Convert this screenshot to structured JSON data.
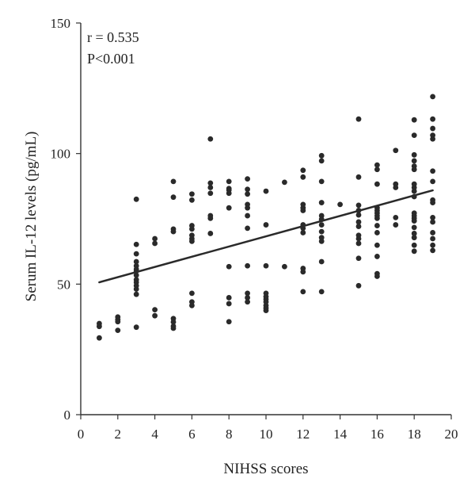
{
  "chart_data": {
    "type": "scatter",
    "title": "",
    "xlabel": "NIHSS scores",
    "ylabel": "Serum IL-12 levels (pg/mL)",
    "xlim": [
      0,
      20
    ],
    "ylim": [
      0,
      150
    ],
    "x_ticks": [
      0,
      2,
      4,
      6,
      8,
      10,
      12,
      14,
      16,
      18,
      20
    ],
    "y_ticks": [
      0,
      50,
      100,
      150
    ],
    "grid": false,
    "legend": "none",
    "annotations": [
      "r = 0.535",
      "P<0.001"
    ],
    "regression_line": {
      "x": [
        1,
        19
      ],
      "y": [
        50.7,
        85.9
      ]
    },
    "colors": {
      "points": "#2a2a2a",
      "line": "#2a2a2a",
      "axes": "#333333"
    },
    "points": [
      [
        1,
        33.8
      ],
      [
        1,
        34.9
      ],
      [
        1,
        29.4
      ],
      [
        2,
        32.3
      ],
      [
        2,
        35.6
      ],
      [
        2,
        36.4
      ],
      [
        2,
        37.4
      ],
      [
        3,
        82.5
      ],
      [
        3,
        65.2
      ],
      [
        3,
        61.6
      ],
      [
        3,
        58.6
      ],
      [
        3,
        57.0
      ],
      [
        3,
        55.7
      ],
      [
        3,
        55.0
      ],
      [
        3,
        53.4
      ],
      [
        3,
        51.7
      ],
      [
        3,
        50.7
      ],
      [
        3,
        49.4
      ],
      [
        3,
        48.1
      ],
      [
        3,
        46.1
      ],
      [
        3,
        33.5
      ],
      [
        4,
        67.4
      ],
      [
        4,
        65.6
      ],
      [
        4,
        40.2
      ],
      [
        4,
        37.9
      ],
      [
        5,
        89.3
      ],
      [
        5,
        83.3
      ],
      [
        5,
        71.1
      ],
      [
        5,
        70.1
      ],
      [
        5,
        36.8
      ],
      [
        5,
        35.5
      ],
      [
        5,
        33.9
      ],
      [
        5,
        33.1
      ],
      [
        6,
        84.5
      ],
      [
        6,
        82.2
      ],
      [
        6,
        72.4
      ],
      [
        6,
        71.1
      ],
      [
        6,
        68.7
      ],
      [
        6,
        67.4
      ],
      [
        6,
        66.4
      ],
      [
        6,
        46.5
      ],
      [
        6,
        43.2
      ],
      [
        6,
        41.8
      ],
      [
        7,
        105.6
      ],
      [
        7,
        88.7
      ],
      [
        7,
        87.0
      ],
      [
        7,
        84.8
      ],
      [
        7,
        76.2
      ],
      [
        7,
        75.2
      ],
      [
        7,
        69.4
      ],
      [
        8,
        89.3
      ],
      [
        8,
        86.6
      ],
      [
        8,
        86.0
      ],
      [
        8,
        84.8
      ],
      [
        8,
        79.2
      ],
      [
        8,
        56.7
      ],
      [
        8,
        44.8
      ],
      [
        8,
        42.5
      ],
      [
        8,
        35.6
      ],
      [
        9,
        90.3
      ],
      [
        9,
        86.3
      ],
      [
        9,
        84.5
      ],
      [
        9,
        80.5
      ],
      [
        9,
        79.2
      ],
      [
        9,
        76.2
      ],
      [
        9,
        71.4
      ],
      [
        9,
        57.0
      ],
      [
        9,
        46.5
      ],
      [
        9,
        44.8
      ],
      [
        9,
        43.2
      ],
      [
        10,
        85.6
      ],
      [
        10,
        72.7
      ],
      [
        10,
        57.0
      ],
      [
        10,
        46.5
      ],
      [
        10,
        45.2
      ],
      [
        10,
        44.2
      ],
      [
        10,
        43.2
      ],
      [
        10,
        41.8
      ],
      [
        10,
        40.8
      ],
      [
        10,
        39.9
      ],
      [
        11,
        89.0
      ],
      [
        11,
        56.7
      ],
      [
        12,
        93.6
      ],
      [
        12,
        91.0
      ],
      [
        12,
        80.5
      ],
      [
        12,
        79.2
      ],
      [
        12,
        78.2
      ],
      [
        12,
        72.7
      ],
      [
        12,
        71.4
      ],
      [
        12,
        69.7
      ],
      [
        12,
        56.0
      ],
      [
        12,
        54.7
      ],
      [
        12,
        47.1
      ],
      [
        13,
        99.2
      ],
      [
        13,
        97.2
      ],
      [
        13,
        89.3
      ],
      [
        13,
        81.2
      ],
      [
        13,
        76.2
      ],
      [
        13,
        74.8
      ],
      [
        13,
        72.7
      ],
      [
        13,
        70.1
      ],
      [
        13,
        67.8
      ],
      [
        13,
        66.4
      ],
      [
        13,
        58.6
      ],
      [
        13,
        47.1
      ],
      [
        14,
        80.5
      ],
      [
        15,
        113.2
      ],
      [
        15,
        91.0
      ],
      [
        15,
        80.2
      ],
      [
        15,
        78.2
      ],
      [
        15,
        76.5
      ],
      [
        15,
        73.8
      ],
      [
        15,
        72.1
      ],
      [
        15,
        68.7
      ],
      [
        15,
        67.4
      ],
      [
        15,
        65.6
      ],
      [
        15,
        59.9
      ],
      [
        15,
        49.4
      ],
      [
        16,
        95.6
      ],
      [
        16,
        93.9
      ],
      [
        16,
        88.3
      ],
      [
        16,
        79.2
      ],
      [
        16,
        78.2
      ],
      [
        16,
        77.2
      ],
      [
        16,
        76.2
      ],
      [
        16,
        75.2
      ],
      [
        16,
        72.4
      ],
      [
        16,
        69.7
      ],
      [
        16,
        64.9
      ],
      [
        16,
        60.6
      ],
      [
        16,
        54.0
      ],
      [
        16,
        53.0
      ],
      [
        17,
        101.2
      ],
      [
        17,
        88.3
      ],
      [
        17,
        87.0
      ],
      [
        17,
        75.5
      ],
      [
        17,
        72.7
      ],
      [
        18,
        112.9
      ],
      [
        18,
        107.0
      ],
      [
        18,
        99.5
      ],
      [
        18,
        97.2
      ],
      [
        18,
        95.2
      ],
      [
        18,
        93.9
      ],
      [
        18,
        88.3
      ],
      [
        18,
        87.0
      ],
      [
        18,
        85.6
      ],
      [
        18,
        83.5
      ],
      [
        18,
        77.2
      ],
      [
        18,
        76.2
      ],
      [
        18,
        75.2
      ],
      [
        18,
        74.2
      ],
      [
        18,
        71.7
      ],
      [
        18,
        69.4
      ],
      [
        18,
        67.8
      ],
      [
        18,
        64.9
      ],
      [
        18,
        62.6
      ],
      [
        19,
        121.8
      ],
      [
        19,
        113.2
      ],
      [
        19,
        109.6
      ],
      [
        19,
        107.0
      ],
      [
        19,
        105.6
      ],
      [
        19,
        93.3
      ],
      [
        19,
        89.3
      ],
      [
        19,
        82.2
      ],
      [
        19,
        81.2
      ],
      [
        19,
        75.5
      ],
      [
        19,
        73.8
      ],
      [
        19,
        69.7
      ],
      [
        19,
        67.4
      ],
      [
        19,
        64.9
      ],
      [
        19,
        62.9
      ]
    ]
  }
}
